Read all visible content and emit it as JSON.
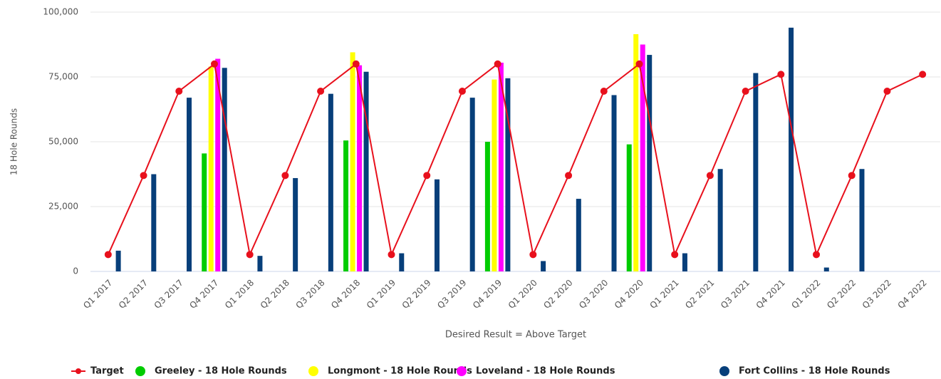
{
  "chart_data": {
    "type": "bar",
    "y_axis_label": "18 Hole Rounds",
    "x_axis_label": "Desired Result = Above Target",
    "categories": [
      "Q1 2017",
      "Q2 2017",
      "Q3 2017",
      "Q4 2017",
      "Q1 2018",
      "Q2 2018",
      "Q3 2018",
      "Q4 2018",
      "Q1 2019",
      "Q2 2019",
      "Q3 2019",
      "Q4 2019",
      "Q1 2020",
      "Q2 2020",
      "Q3 2020",
      "Q4 2020",
      "Q1 2021",
      "Q2 2021",
      "Q3 2021",
      "Q4 2021",
      "Q1 2022",
      "Q2 2022",
      "Q3 2022",
      "Q4 2022"
    ],
    "ylim": [
      0,
      100000
    ],
    "yticks": [
      0,
      {
        "value": 25000,
        "label": "25,000"
      },
      {
        "value": 50000,
        "label": "50,000"
      },
      {
        "value": 75000,
        "label": "75,000"
      },
      {
        "value": 100000,
        "label": "100,000"
      }
    ],
    "grid": true,
    "legend": "bottom",
    "series": [
      {
        "name": "Target",
        "type": "line",
        "color": "#e8101c",
        "values": [
          6500,
          37000,
          69500,
          80000,
          6500,
          37000,
          69500,
          80000,
          6500,
          37000,
          69500,
          80000,
          6500,
          37000,
          69500,
          80000,
          6500,
          37000,
          69500,
          76000,
          6500,
          37000,
          69500,
          76000
        ]
      },
      {
        "name": "Greeley - 18 Hole Rounds",
        "type": "bar",
        "color": "#00cc00",
        "values": [
          null,
          null,
          null,
          45500,
          null,
          null,
          null,
          50500,
          null,
          null,
          null,
          50000,
          null,
          null,
          null,
          49000,
          null,
          null,
          null,
          null,
          null,
          null,
          null,
          null
        ]
      },
      {
        "name": "Longmont - 18 Hole Rounds",
        "type": "bar",
        "color": "#ffff00",
        "values": [
          null,
          null,
          null,
          79000,
          null,
          null,
          null,
          84500,
          null,
          null,
          null,
          74000,
          null,
          null,
          null,
          91500,
          null,
          null,
          null,
          null,
          null,
          null,
          null,
          null
        ]
      },
      {
        "name": "Loveland - 18 Hole Rounds",
        "type": "bar",
        "color": "#ff00ff",
        "values": [
          null,
          null,
          null,
          82000,
          null,
          null,
          null,
          79500,
          null,
          null,
          null,
          80500,
          null,
          null,
          null,
          87500,
          null,
          null,
          null,
          null,
          null,
          null,
          null,
          null
        ]
      },
      {
        "name": "Fort Collins - 18 Hole Rounds",
        "type": "bar",
        "color": "#073f7a",
        "values": [
          8000,
          37500,
          67000,
          78500,
          6000,
          36000,
          68500,
          77000,
          7000,
          35500,
          67000,
          74500,
          4000,
          28000,
          68000,
          83500,
          7000,
          39500,
          76500,
          94000,
          1500,
          39500,
          null,
          null
        ]
      }
    ]
  }
}
